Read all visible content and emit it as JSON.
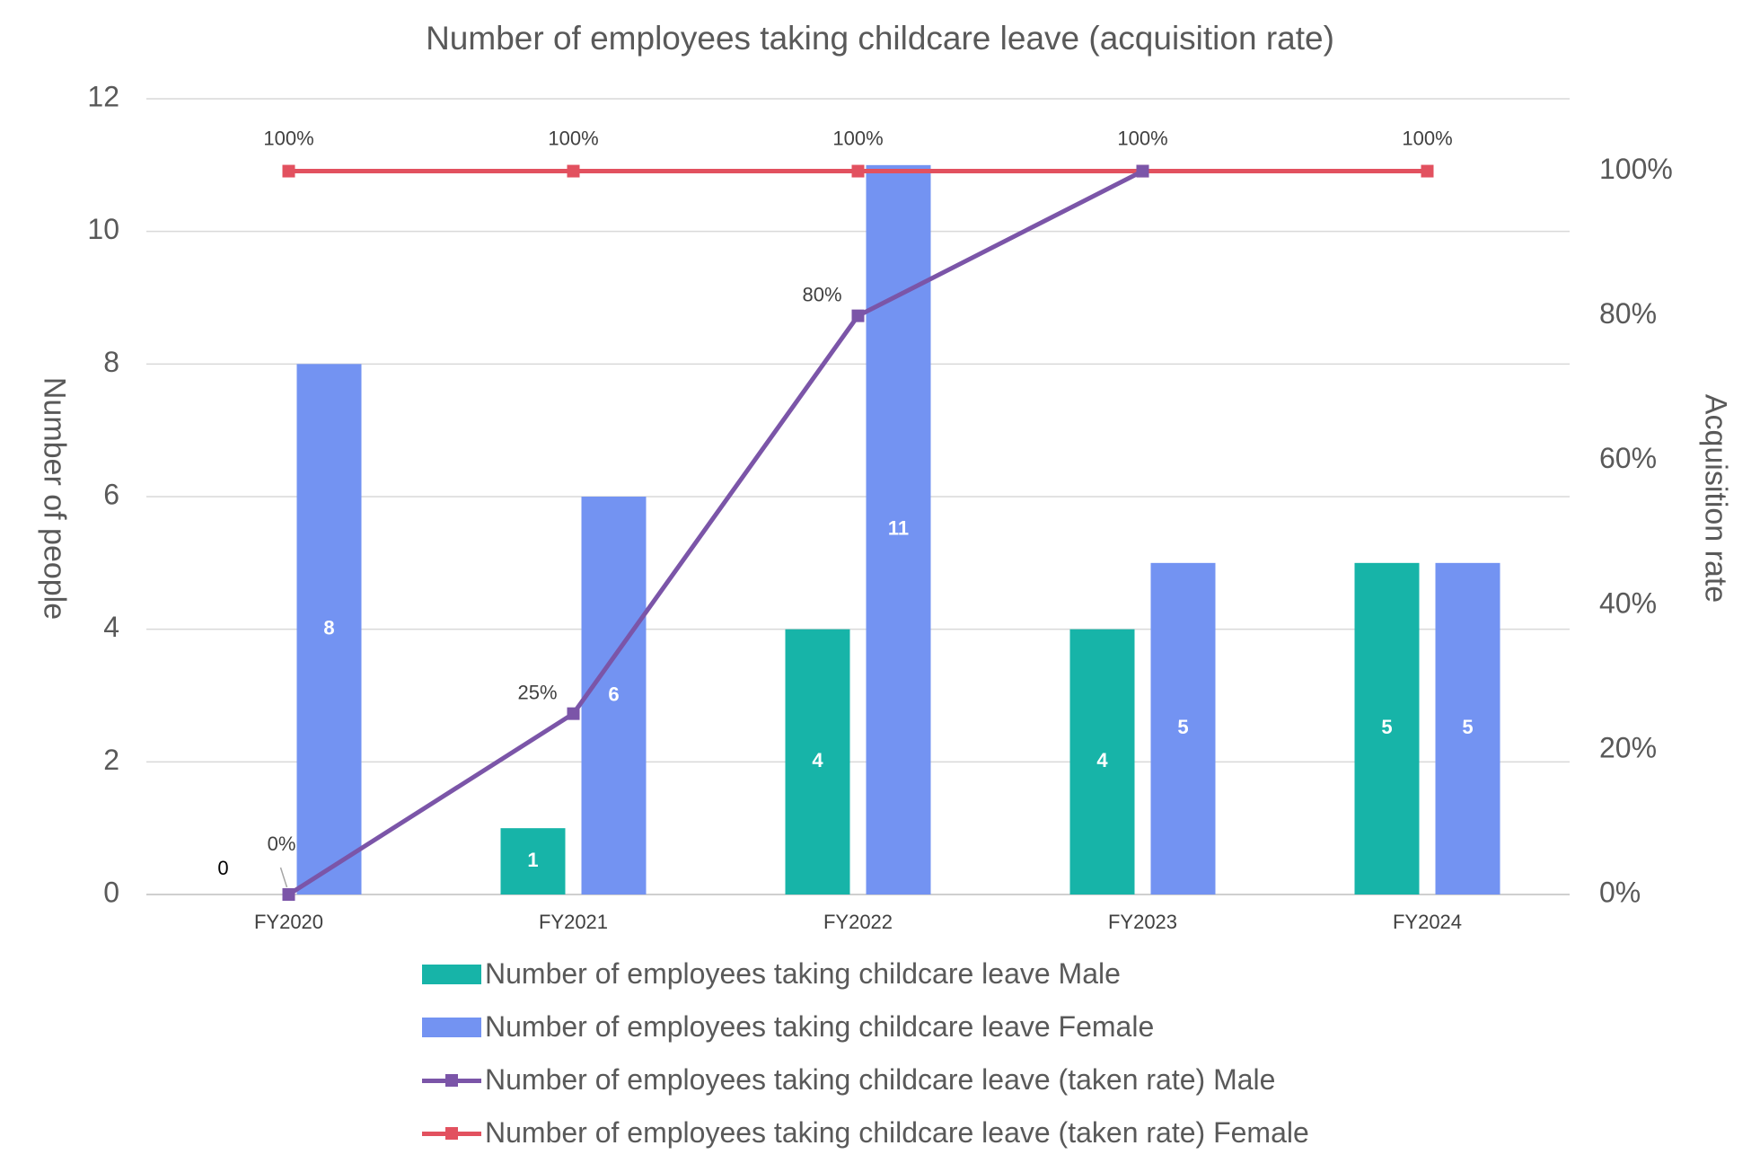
{
  "chart_data": {
    "type": "bar",
    "title": "Number of employees taking childcare leave (acquisition rate)",
    "ylabel": "Number of people",
    "y2label": "Acquisition rate",
    "categories": [
      "FY2020",
      "FY2021",
      "FY2022",
      "FY2023",
      "FY2024"
    ],
    "ylim": [
      0,
      12
    ],
    "y_ticks": [
      "0",
      "2",
      "4",
      "6",
      "8",
      "10",
      "12"
    ],
    "y2lim": [
      0,
      1.1
    ],
    "y2_ticks": [
      "0%",
      "20%",
      "40%",
      "60%",
      "80%",
      "100%"
    ],
    "grid": true,
    "legend_position": "bottom",
    "series": [
      {
        "name": "Number of employees taking childcare leave Male",
        "type": "bar",
        "axis": "left",
        "color": "#17b4a8",
        "values": [
          0,
          1,
          4,
          4,
          5
        ],
        "labels": [
          "0",
          "1",
          "4",
          "4",
          "5"
        ]
      },
      {
        "name": "Number of employees taking childcare leave Female",
        "type": "bar",
        "axis": "left",
        "color": "#7393f2",
        "values": [
          8,
          6,
          11,
          5,
          5
        ],
        "labels": [
          "8",
          "6",
          "11",
          "5",
          "5"
        ]
      },
      {
        "name": "Number of employees taking childcare leave (taken rate) Male",
        "type": "line",
        "axis": "right",
        "color": "#7b55a8",
        "values": [
          0,
          0.25,
          0.8,
          1.0,
          null
        ],
        "labels": [
          "0%",
          "25%",
          "80%",
          "",
          ""
        ]
      },
      {
        "name": "Number of employees taking childcare leave (taken rate) Female",
        "type": "line",
        "axis": "right",
        "color": "#e2515f",
        "values": [
          1.0,
          1.0,
          1.0,
          1.0,
          1.0
        ],
        "labels": [
          "100%",
          "100%",
          "100%",
          "100%",
          "100%"
        ]
      }
    ]
  }
}
